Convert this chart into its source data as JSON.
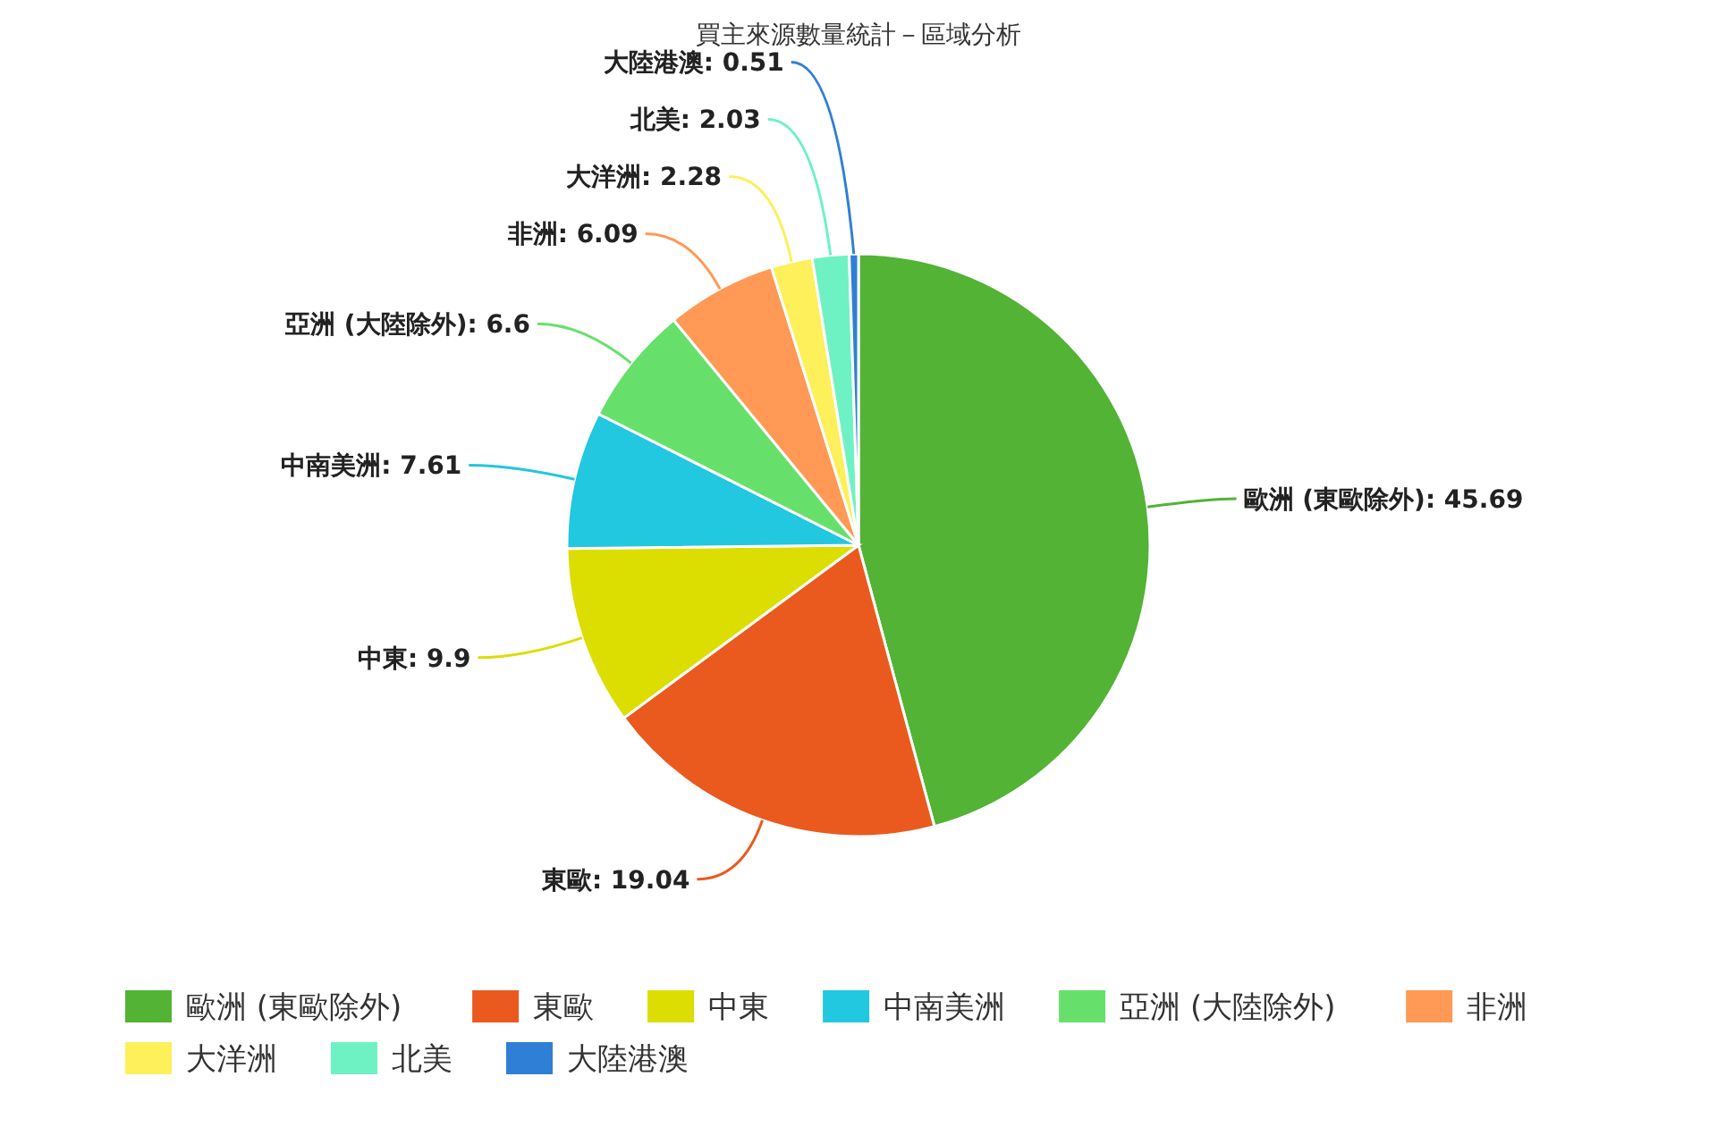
{
  "chart_data": {
    "type": "pie",
    "title": "買主來源數量統計－區域分析",
    "categories": [
      "歐洲 (東歐除外)",
      "東歐",
      "中東",
      "中南美洲",
      "亞洲 (大陸除外)",
      "非洲",
      "大洋洲",
      "北美",
      "大陸港澳"
    ],
    "values": [
      45.69,
      19.04,
      9.9,
      7.61,
      6.6,
      6.09,
      2.28,
      2.03,
      0.51
    ],
    "colors": [
      "#52b335",
      "#ea5a1e",
      "#dbde00",
      "#22c7e0",
      "#67e06b",
      "#ff9955",
      "#fdf05b",
      "#6ef2c3",
      "#2f7fd6"
    ],
    "value_labels": [
      "歐洲 (東歐除外): 45.69",
      "東歐: 19.04",
      "中東: 9.9",
      "中南美洲: 7.61",
      "亞洲 (大陸除外): 6.6",
      "非洲: 6.09",
      "大洋洲: 2.28",
      "北美: 2.03",
      "大陸港澳: 0.51"
    ],
    "legend": "bottom"
  }
}
